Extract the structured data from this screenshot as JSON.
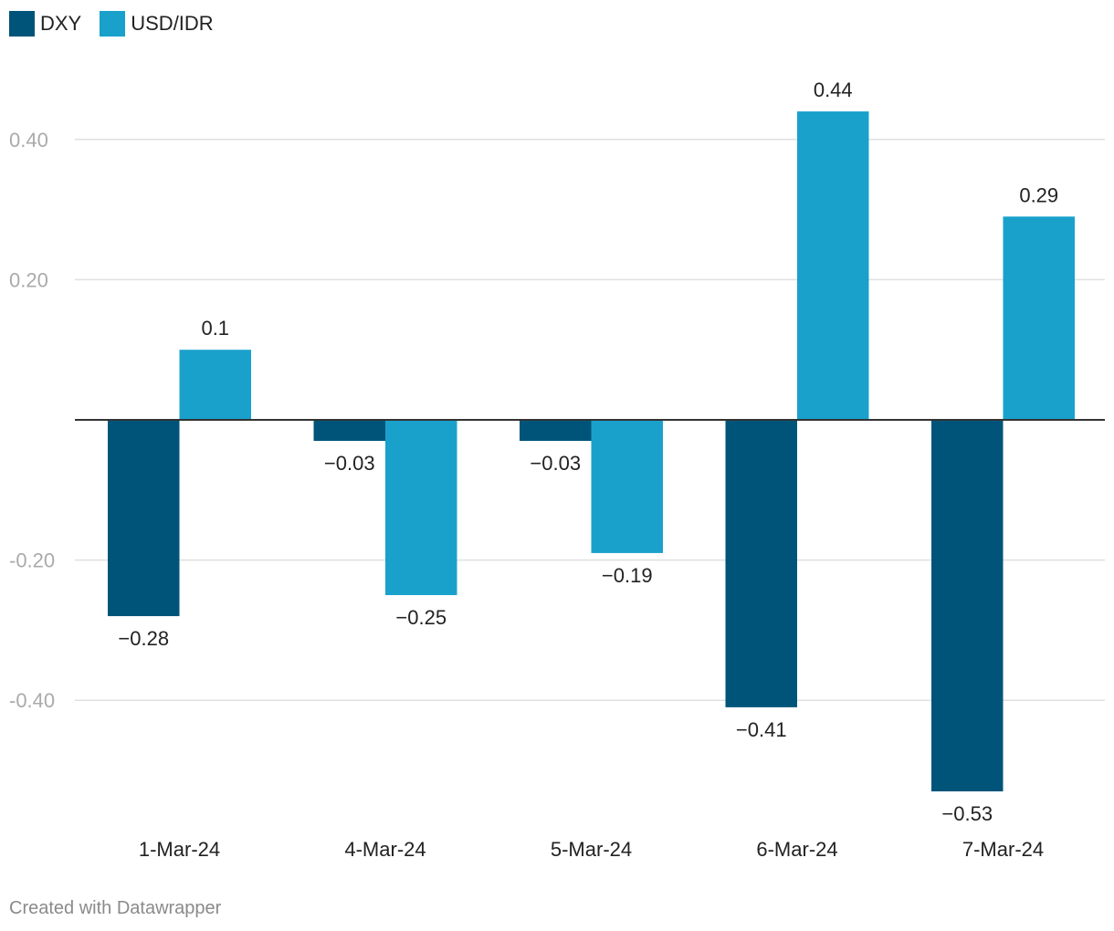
{
  "chart_data": {
    "type": "bar",
    "categories": [
      "1-Mar-24",
      "4-Mar-24",
      "5-Mar-24",
      "6-Mar-24",
      "7-Mar-24"
    ],
    "series": [
      {
        "name": "DXY",
        "values": [
          -0.28,
          -0.03,
          -0.03,
          -0.41,
          -0.53
        ],
        "labels": [
          "−0.28",
          "−0.03",
          "−0.03",
          "−0.41",
          "−0.53"
        ],
        "color": "#005479"
      },
      {
        "name": "USD/IDR",
        "values": [
          0.1,
          -0.25,
          -0.19,
          0.44,
          0.29
        ],
        "labels": [
          "0.1",
          "−0.25",
          "−0.19",
          "0.44",
          "0.29"
        ],
        "color": "#19a1cc"
      }
    ],
    "yticks": [
      0.4,
      0.2,
      -0.2,
      -0.4
    ],
    "ytick_labels": [
      "0.40",
      "0.20",
      "-0.20",
      "-0.40"
    ],
    "ylim": [
      -0.53,
      0.44
    ],
    "title": "",
    "xlabel": "",
    "ylabel": "",
    "grid": true,
    "legend": "top-left"
  },
  "footer": {
    "credit": "Created with Datawrapper"
  }
}
